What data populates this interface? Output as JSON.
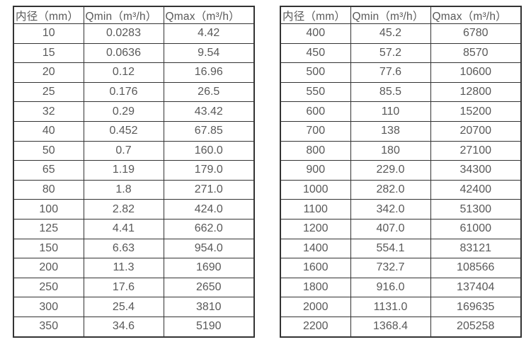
{
  "chart_data": [
    {
      "type": "table",
      "title": "",
      "headers": [
        "内径（mm）",
        "Qmin（m³/h）",
        "Qmax（m³/h）"
      ],
      "rows": [
        [
          "10",
          "0.0283",
          "4.42"
        ],
        [
          "15",
          "0.0636",
          "9.54"
        ],
        [
          "20",
          "0.12",
          "16.96"
        ],
        [
          "25",
          "0.176",
          "26.5"
        ],
        [
          "32",
          "0.29",
          "43.42"
        ],
        [
          "40",
          "0.452",
          "67.85"
        ],
        [
          "50",
          "0.7",
          "160.0"
        ],
        [
          "65",
          "1.19",
          "179.0"
        ],
        [
          "80",
          "1.8",
          "271.0"
        ],
        [
          "100",
          "2.82",
          "424.0"
        ],
        [
          "125",
          "4.41",
          "662.0"
        ],
        [
          "150",
          "6.63",
          "954.0"
        ],
        [
          "200",
          "11.3",
          "1690"
        ],
        [
          "250",
          "17.6",
          "2650"
        ],
        [
          "300",
          "25.4",
          "3810"
        ],
        [
          "350",
          "34.6",
          "5190"
        ]
      ]
    },
    {
      "type": "table",
      "title": "",
      "headers": [
        "内径（mm）",
        "Qmin（m³/h）",
        "Qmax（m³/h）"
      ],
      "rows": [
        [
          "400",
          "45.2",
          "6780"
        ],
        [
          "450",
          "57.2",
          "8570"
        ],
        [
          "500",
          "77.6",
          "10600"
        ],
        [
          "550",
          "85.5",
          "12800"
        ],
        [
          "600",
          "110",
          "15200"
        ],
        [
          "700",
          "138",
          "20700"
        ],
        [
          "800",
          "180",
          "27100"
        ],
        [
          "900",
          "229.0",
          "34300"
        ],
        [
          "1000",
          "282.0",
          "42400"
        ],
        [
          "1100",
          "342.0",
          "51300"
        ],
        [
          "1200",
          "407.0",
          "61000"
        ],
        [
          "1400",
          "554.1",
          "83121"
        ],
        [
          "1600",
          "732.7",
          "108566"
        ],
        [
          "1800",
          "916.0",
          "137404"
        ],
        [
          "2000",
          "1131.0",
          "169635"
        ],
        [
          "2200",
          "1368.4",
          "205258"
        ]
      ]
    }
  ],
  "colors": {
    "border": "#333333",
    "text": "#595959",
    "background": "#ffffff"
  }
}
